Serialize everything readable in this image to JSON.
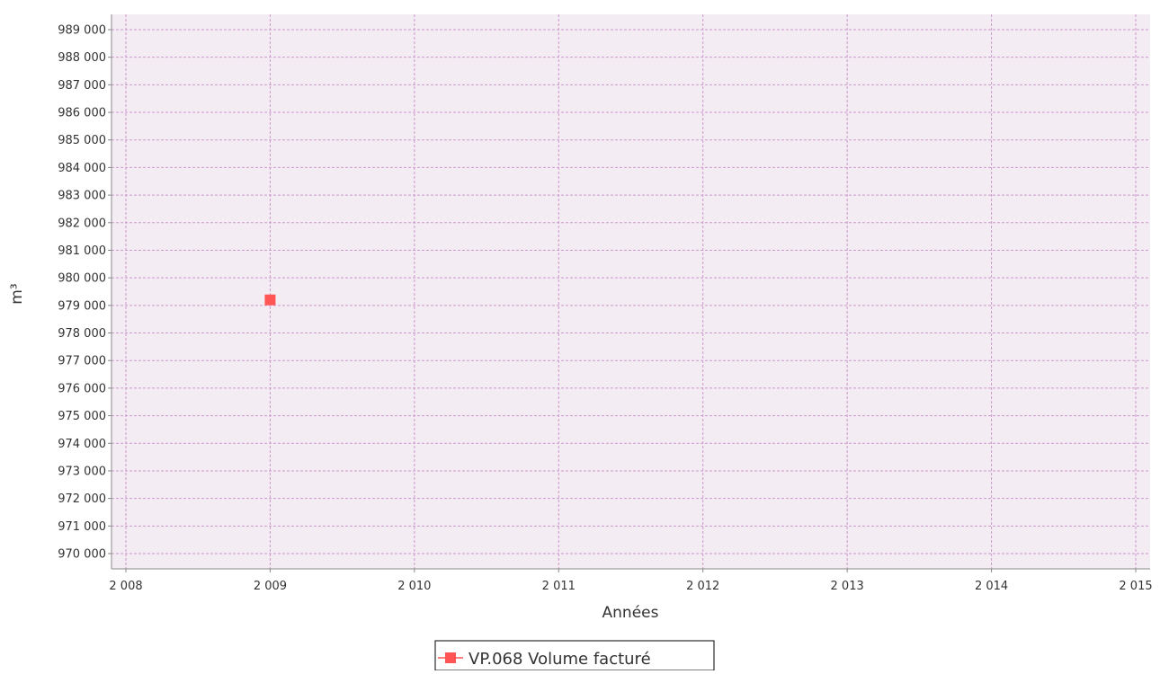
{
  "chart_data": {
    "type": "scatter",
    "title": "",
    "xlabel": "Années",
    "ylabel": "m³",
    "xlim": [
      2008,
      2015
    ],
    "ylim": [
      970000,
      989000
    ],
    "x_ticks": [
      2008,
      2009,
      2010,
      2011,
      2012,
      2013,
      2014,
      2015
    ],
    "x_tick_labels": [
      "2 008",
      "2 009",
      "2 010",
      "2 011",
      "2 012",
      "2 013",
      "2 014",
      "2 015"
    ],
    "y_ticks": [
      989000,
      988000,
      987000,
      986000,
      985000,
      984000,
      983000,
      982000,
      981000,
      980000,
      979000,
      978000,
      977000,
      976000,
      975000,
      974000,
      973000,
      972000,
      971000,
      970000
    ],
    "y_tick_labels": [
      "989 000",
      "988 000",
      "987 000",
      "986 000",
      "985 000",
      "984 000",
      "983 000",
      "982 000",
      "981 000",
      "980 000",
      "979 000",
      "978 000",
      "977 000",
      "976 000",
      "975 000",
      "974 000",
      "973 000",
      "972 000",
      "971 000",
      "970 000"
    ],
    "grid": true,
    "legend_position": "bottom-center",
    "series": [
      {
        "name": "VP.068 Volume facturé",
        "color": "#ff5555",
        "marker": "square",
        "points": [
          {
            "x": 2009,
            "y": 979200
          }
        ]
      }
    ],
    "colors": {
      "plot_background": "#f3ecf3",
      "grid": "#cc99cc",
      "axis": "#888888"
    }
  }
}
